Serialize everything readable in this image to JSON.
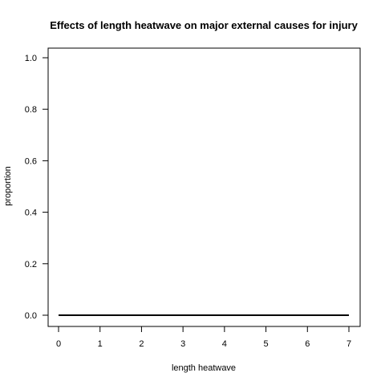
{
  "chart_data": {
    "type": "line",
    "title": "Effects of length heatwave on major external causes for injury",
    "xlabel": "length heatwave",
    "ylabel": "proportion",
    "xlim": [
      0,
      7
    ],
    "ylim": [
      0,
      1
    ],
    "x_ticks": [
      0,
      1,
      2,
      3,
      4,
      5,
      6,
      7
    ],
    "x_tick_labels": [
      "0",
      "1",
      "2",
      "3",
      "4",
      "5",
      "6",
      "7"
    ],
    "y_ticks": [
      0,
      0.2,
      0.4,
      0.6,
      0.8,
      1.0
    ],
    "y_tick_labels": [
      "0.0",
      "0.2",
      "0.4",
      "0.6",
      "0.8",
      "1.0"
    ],
    "grid": false,
    "legend": "none",
    "series": [
      {
        "color": "#000000",
        "x": [
          0,
          1,
          2,
          3,
          4,
          5,
          6,
          7
        ],
        "y": [
          0,
          0,
          0,
          0,
          0,
          0,
          0,
          0
        ]
      }
    ]
  }
}
